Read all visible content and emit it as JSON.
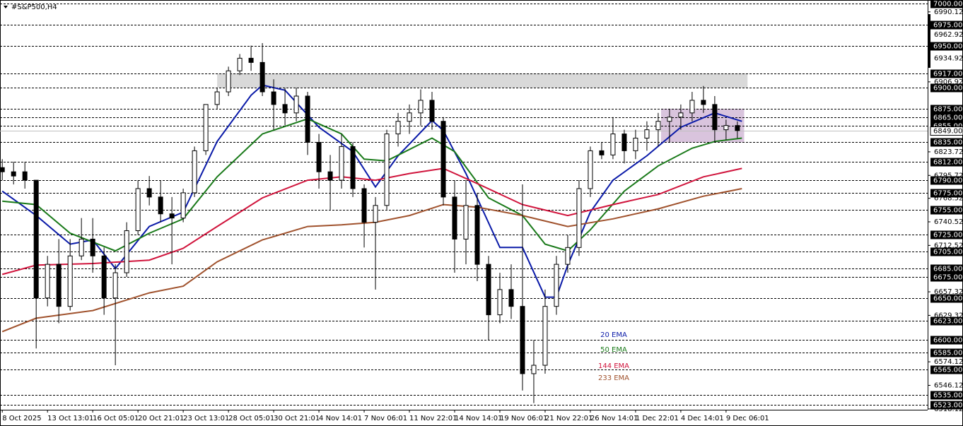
{
  "chart_data": {
    "type": "candlestick",
    "title": "#S&P500,H4",
    "ylim": [
      6518.8,
      7001.7
    ],
    "xlim": [
      -0.2,
      81.7
    ],
    "candles": {
      "color": "#000000",
      "open": [
        6805,
        6800,
        6800,
        6790,
        6650,
        6690,
        6640,
        6700,
        6720,
        6700,
        6650,
        6680,
        6730,
        6780,
        6770,
        6750,
        6745,
        6775,
        6825,
        6880,
        6895,
        6920,
        6935,
        6930,
        6895,
        6880,
        6870,
        6890,
        6835,
        6800,
        6790,
        6830,
        6780,
        6740,
        6760,
        6845,
        6860,
        6870,
        6885,
        6860,
        6770,
        6720,
        6760,
        6690,
        6630,
        6660,
        6640,
        6560,
        6570,
        6640,
        6690,
        6710,
        6780,
        6825,
        6820,
        6845,
        6825,
        6840,
        6850,
        6860,
        6865,
        6870,
        6885,
        6880,
        6850,
        6855
      ],
      "high": [
        6815,
        6812,
        6812,
        6790,
        6700,
        6720,
        6720,
        6745,
        6745,
        6710,
        6690,
        6740,
        6790,
        6795,
        6790,
        6770,
        6780,
        6830,
        6880,
        6900,
        6925,
        6940,
        6950,
        6953,
        6910,
        6900,
        6900,
        6895,
        6845,
        6820,
        6845,
        6835,
        6785,
        6770,
        6850,
        6870,
        6880,
        6898,
        6895,
        6865,
        6790,
        6790,
        6775,
        6700,
        6680,
        6690,
        6785,
        6600,
        6660,
        6700,
        6725,
        6790,
        6830,
        6835,
        6865,
        6850,
        6850,
        6860,
        6870,
        6875,
        6880,
        6895,
        6902,
        6890,
        6862,
        6860
      ],
      "low": [
        6790,
        6785,
        6780,
        6590,
        6640,
        6620,
        6635,
        6695,
        6680,
        6630,
        6570,
        6675,
        6725,
        6760,
        6740,
        6690,
        6740,
        6770,
        6820,
        6875,
        6890,
        6915,
        6920,
        6890,
        6850,
        6855,
        6860,
        6820,
        6780,
        6755,
        6780,
        6770,
        6710,
        6660,
        6755,
        6830,
        6845,
        6855,
        6850,
        6760,
        6680,
        6690,
        6670,
        6600,
        6620,
        6625,
        6540,
        6525,
        6560,
        6630,
        6680,
        6700,
        6770,
        6815,
        6815,
        6810,
        6815,
        6825,
        6830,
        6835,
        6850,
        6860,
        6870,
        6835,
        6838,
        6840
      ],
      "close": [
        6800,
        6795,
        6790,
        6650,
        6690,
        6640,
        6700,
        6720,
        6700,
        6650,
        6680,
        6730,
        6780,
        6770,
        6750,
        6745,
        6775,
        6825,
        6880,
        6895,
        6920,
        6935,
        6930,
        6895,
        6880,
        6870,
        6890,
        6835,
        6800,
        6790,
        6830,
        6780,
        6740,
        6760,
        6845,
        6860,
        6870,
        6885,
        6860,
        6770,
        6720,
        6760,
        6690,
        6630,
        6660,
        6640,
        6560,
        6570,
        6640,
        6690,
        6710,
        6780,
        6825,
        6820,
        6845,
        6825,
        6840,
        6850,
        6860,
        6865,
        6870,
        6885,
        6880,
        6850,
        6855,
        6849
      ]
    },
    "series": [
      {
        "name": "20 EMA",
        "color": "#0a1aa8",
        "x": [
          0,
          3,
          6,
          8,
          10,
          13,
          16,
          19,
          22,
          23,
          25,
          28,
          31,
          33,
          35,
          38,
          39,
          41,
          44,
          46,
          48,
          49,
          50,
          52,
          54,
          57,
          60,
          63,
          65.4
        ],
        "values": [
          6777,
          6748,
          6714,
          6719,
          6685,
          6735,
          6752,
          6836,
          6891,
          6903,
          6897,
          6853,
          6824,
          6782,
          6819,
          6861,
          6849,
          6798,
          6710,
          6710,
          6651,
          6651,
          6689,
          6752,
          6790,
          6819,
          6853,
          6870,
          6860
        ]
      },
      {
        "name": "50 EMA",
        "color": "#1a7a1a",
        "x": [
          0,
          3,
          6,
          10,
          13,
          16,
          19,
          23,
          27,
          30,
          32,
          34,
          38,
          40,
          43,
          46,
          48,
          50,
          52,
          55,
          58,
          61,
          63,
          65.4
        ],
        "values": [
          6765,
          6761,
          6727,
          6706,
          6727,
          6744,
          6794,
          6845,
          6863,
          6845,
          6815,
          6813,
          6840,
          6824,
          6769,
          6748,
          6714,
          6706,
          6731,
          6777,
          6807,
          6828,
          6836,
          6840
        ]
      },
      {
        "name": "144 EMA",
        "color": "#d0143c",
        "x": [
          0,
          3,
          8,
          13,
          16,
          19,
          23,
          27,
          30,
          33,
          36,
          39,
          42,
          46,
          50,
          54,
          58,
          62,
          65.4
        ],
        "values": [
          6678,
          6689,
          6691,
          6695,
          6709,
          6735,
          6769,
          6790,
          6794,
          6790,
          6798,
          6804,
          6786,
          6761,
          6748,
          6761,
          6773,
          6794,
          6804
        ]
      },
      {
        "name": "233 EMA",
        "color": "#a0522d",
        "x": [
          0,
          3,
          8,
          13,
          16,
          19,
          23,
          27,
          30,
          33,
          36,
          39,
          42,
          46,
          50,
          54,
          58,
          62,
          65.4
        ],
        "values": [
          6610,
          6626,
          6635,
          6656,
          6664,
          6693,
          6719,
          6735,
          6737,
          6740,
          6748,
          6761,
          6758,
          6748,
          6735,
          6744,
          6756,
          6771,
          6780
        ]
      }
    ],
    "zones": [
      {
        "x": [
          19.0,
          65.9
        ],
        "y": [
          6900,
          6917
        ],
        "color": "#d9d9d9"
      },
      {
        "x": [
          58.25,
          65.6
        ],
        "y": [
          6835,
          6875
        ],
        "color": "#d9c4dd"
      }
    ],
    "levels": [
      {
        "value": 7000,
        "label": "7000.00"
      },
      {
        "value": 6975,
        "label": "6975.00"
      },
      {
        "value": 6950,
        "label": "6950.00"
      },
      {
        "value": 6917,
        "label": "6917.00"
      },
      {
        "value": 6900,
        "label": "6900.00"
      },
      {
        "value": 6875,
        "label": "6875.00"
      },
      {
        "value": 6865,
        "label": "6865.00"
      },
      {
        "value": 6855,
        "label": "6855.00"
      },
      {
        "value": 6835,
        "label": "6835.00"
      },
      {
        "value": 6812,
        "label": "6812.00"
      },
      {
        "value": 6790,
        "label": "6790.00"
      },
      {
        "value": 6775,
        "label": "6775.00"
      },
      {
        "value": 6755,
        "label": "6755.00"
      },
      {
        "value": 6725,
        "label": "6725.00"
      },
      {
        "value": 6705,
        "label": "6705.00"
      },
      {
        "value": 6685,
        "label": "6685.00"
      },
      {
        "value": 6675,
        "label": "6675.00"
      },
      {
        "value": 6650,
        "label": "6650.00"
      },
      {
        "value": 6623,
        "label": "6623.00"
      },
      {
        "value": 6600,
        "label": "6600.00"
      },
      {
        "value": 6585,
        "label": "6585.00"
      },
      {
        "value": 6565,
        "label": "6565.00"
      },
      {
        "value": 6535,
        "label": "6535.00"
      },
      {
        "value": 6523,
        "label": "6523.00"
      }
    ],
    "last_price": {
      "value": 6849,
      "label": "6849.00"
    },
    "yticks": [
      {
        "value": 6990.12,
        "label": "6990.12"
      },
      {
        "value": 6962.92,
        "label": "6962.92"
      },
      {
        "value": 6934.92,
        "label": "6934.92"
      },
      {
        "value": 6906.92,
        "label": "6906.92"
      },
      {
        "value": 6823.72,
        "label": "6823.72"
      },
      {
        "value": 6795.72,
        "label": "6795.72"
      },
      {
        "value": 6768.52,
        "label": "6768.52"
      },
      {
        "value": 6740.52,
        "label": "6740.52"
      },
      {
        "value": 6712.52,
        "label": "6712.52"
      },
      {
        "value": 6657.32,
        "label": "6657.32"
      },
      {
        "value": 6629.32,
        "label": "6629.32"
      },
      {
        "value": 6574.12,
        "label": "6574.12"
      },
      {
        "value": 6546.12,
        "label": "6546.12"
      },
      {
        "value": 6518.12,
        "label": "6518.12"
      }
    ],
    "xticks": [
      {
        "value": 0,
        "label": "8 Oct 2025"
      },
      {
        "value": 4,
        "label": "13 Oct 13:01"
      },
      {
        "value": 8,
        "label": "16 Oct 05:01"
      },
      {
        "value": 12,
        "label": "20 Oct 21:01"
      },
      {
        "value": 16,
        "label": "23 Oct 13:01"
      },
      {
        "value": 20,
        "label": "28 Oct 05:01"
      },
      {
        "value": 24,
        "label": "30 Oct 21:01"
      },
      {
        "value": 28,
        "label": "4 Nov 14:01"
      },
      {
        "value": 32,
        "label": "7 Nov 06:01"
      },
      {
        "value": 36,
        "label": "11 Nov 22:01"
      },
      {
        "value": 40,
        "label": "14 Nov 14:01"
      },
      {
        "value": 44,
        "label": "19 Nov 06:01"
      },
      {
        "value": 48,
        "label": "21 Nov 22:01"
      },
      {
        "value": 52,
        "label": "26 Nov 14:01"
      },
      {
        "value": 56,
        "label": "1 Dec 22:01"
      },
      {
        "value": 60,
        "label": "4 Dec 14:01"
      },
      {
        "value": 64,
        "label": "9 Dec 06:01"
      }
    ]
  }
}
